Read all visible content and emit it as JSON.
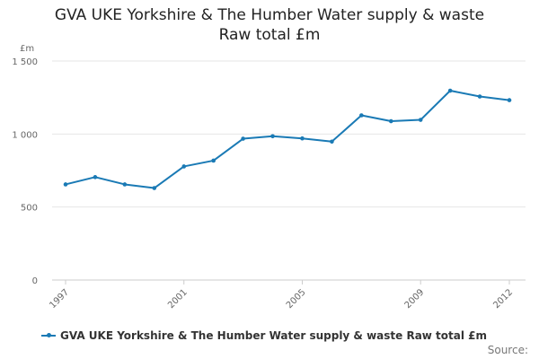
{
  "chart_data": {
    "type": "line",
    "title_lines": [
      "GVA UKE Yorkshire & The Humber Water supply & waste",
      "Raw total £m"
    ],
    "y_unit": "£m",
    "xlim": [
      1997,
      2012
    ],
    "ylim": [
      0,
      1500
    ],
    "x_ticks": [
      1997,
      2001,
      2005,
      2009,
      2012
    ],
    "y_ticks": [
      0,
      500,
      1000,
      1500
    ],
    "y_tick_labels": [
      "0",
      "500",
      "1 000",
      "1 500"
    ],
    "grid": "horizontal",
    "legend_position": "bottom",
    "series": [
      {
        "name": "GVA UKE Yorkshire & The Humber Water supply & waste Raw total £m",
        "color": "#1a7ab5",
        "x": [
          1997,
          1998,
          1999,
          2000,
          2001,
          2002,
          2003,
          2004,
          2005,
          2006,
          2007,
          2008,
          2009,
          2010,
          2011,
          2012
        ],
        "values": [
          655,
          705,
          655,
          630,
          778,
          818,
          968,
          985,
          970,
          948,
          1128,
          1088,
          1097,
          1297,
          1257,
          1232
        ]
      }
    ],
    "credit": "Source:"
  }
}
